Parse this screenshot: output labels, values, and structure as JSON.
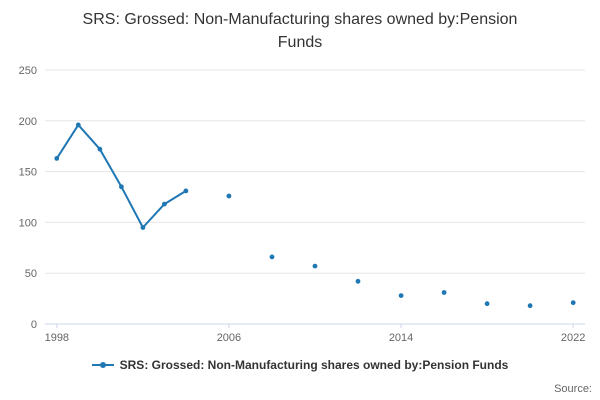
{
  "source_label": "Source:",
  "chart_data": {
    "type": "line",
    "title": "SRS: Grossed: Non-Manufacturing shares owned by:Pension Funds",
    "xlabel": "",
    "ylabel": "",
    "xlim": [
      1997.45,
      2022.55
    ],
    "ylim": [
      0,
      250
    ],
    "x_ticks": [
      1998,
      2006,
      2014,
      2022
    ],
    "y_ticks": [
      0,
      50,
      100,
      150,
      200,
      250
    ],
    "grid": "horizontal",
    "grid_color": "#e6e6e6",
    "axis_line_color": "#ccd6eb",
    "axis_label_color": "#666666",
    "legend_position": "bottom",
    "series": [
      {
        "name": "SRS: Grossed: Non-Manufacturing shares owned by:Pension Funds",
        "color": "#1f77b4",
        "points": [
          {
            "x": 1998,
            "y": 163
          },
          {
            "x": 1999,
            "y": 196
          },
          {
            "x": 2000,
            "y": 172
          },
          {
            "x": 2001,
            "y": 135
          },
          {
            "x": 2002,
            "y": 95
          },
          {
            "x": 2003,
            "y": 118
          },
          {
            "x": 2004,
            "y": 131
          },
          {
            "x": 2006,
            "y": 126
          },
          {
            "x": 2008,
            "y": 66
          },
          {
            "x": 2010,
            "y": 57
          },
          {
            "x": 2012,
            "y": 42
          },
          {
            "x": 2014,
            "y": 28
          },
          {
            "x": 2016,
            "y": 31
          },
          {
            "x": 2018,
            "y": 20
          },
          {
            "x": 2020,
            "y": 18
          },
          {
            "x": 2022,
            "y": 21
          }
        ]
      }
    ]
  }
}
